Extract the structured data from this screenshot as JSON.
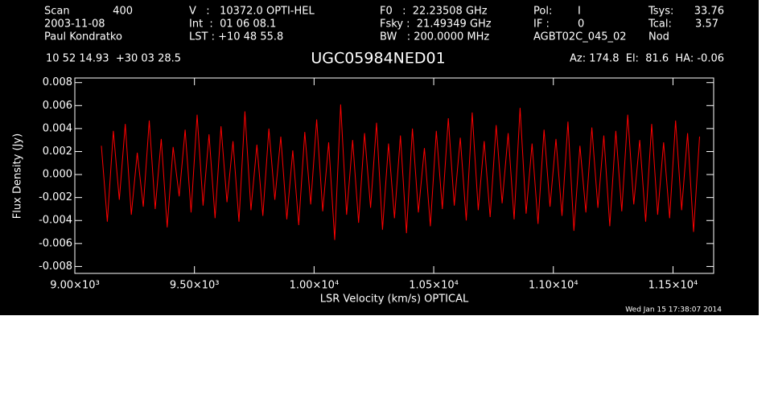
{
  "chart_data": {
    "type": "line",
    "title": "UGC05984NED01",
    "annotations": [
      "Scan",
      "400",
      "V   :   10372.0 OPTI-HEL",
      "F0   :  22.23508 GHz",
      "Pol:",
      "I",
      "Tsys:",
      "33.76",
      "2003-11-08",
      "Int  :  01 06 08.1",
      "Fsky :  21.49349 GHz",
      "IF :",
      "0",
      "Tcal:",
      "3.57",
      "Paul Kondratko",
      "LST : +10 48 55.8",
      "BW   : 200.0000 MHz",
      "AGBT02C_045_02",
      "Nod",
      "10 52 14.93  +30 03 28.5",
      "Az: 174.8  El:  81.6  HA: -0.06"
    ],
    "timestamp": "Wed Jan 15 17:38:07 2014",
    "xlabel": "LSR Velocity (km/s) OPTICAL",
    "ylabel": "Flux Density (Jy)",
    "xlim": [
      9000,
      11670
    ],
    "ylim": [
      -0.0086,
      0.0084
    ],
    "xticks": [
      {
        "value": 9000,
        "label": "9.00×10³"
      },
      {
        "value": 9500,
        "label": "9.50×10³"
      },
      {
        "value": 10000,
        "label": "1.00×10⁴"
      },
      {
        "value": 10500,
        "label": "1.05×10⁴"
      },
      {
        "value": 11000,
        "label": "1.10×10⁴"
      },
      {
        "value": 11500,
        "label": "1.15×10⁴"
      }
    ],
    "yticks": [
      -0.008,
      -0.006,
      -0.004,
      -0.002,
      {
        "value": 0,
        "label": "0.000"
      },
      0.002,
      0.004,
      0.006,
      0.008
    ],
    "grid": false,
    "series": [
      {
        "color": "#ff0000",
        "x": [
          9111,
          9136,
          9161,
          9186,
          9211,
          9236,
          9261,
          9286,
          9311,
          9336,
          9361,
          9386,
          9411,
          9436,
          9461,
          9486,
          9511,
          9536,
          9561,
          9586,
          9611,
          9636,
          9661,
          9686,
          9711,
          9736,
          9761,
          9786,
          9811,
          9836,
          9861,
          9886,
          9911,
          9936,
          9961,
          9986,
          10011,
          10036,
          10061,
          10086,
          10111,
          10136,
          10161,
          10186,
          10211,
          10236,
          10261,
          10286,
          10311,
          10336,
          10361,
          10386,
          10411,
          10436,
          10461,
          10486,
          10511,
          10536,
          10561,
          10586,
          10611,
          10636,
          10661,
          10686,
          10711,
          10736,
          10761,
          10786,
          10811,
          10836,
          10861,
          10886,
          10911,
          10936,
          10961,
          10986,
          11011,
          11036,
          11061,
          11086,
          11111,
          11136,
          11161,
          11186,
          11211,
          11236,
          11261,
          11286,
          11311,
          11336,
          11361,
          11386,
          11411,
          11436,
          11461,
          11486,
          11511,
          11536,
          11561,
          11586,
          11611
        ],
        "values": [
          0.0025,
          -0.0041,
          0.0038,
          -0.0022,
          0.0044,
          -0.0035,
          0.0019,
          -0.0028,
          0.0047,
          -0.003,
          0.0031,
          -0.0046,
          0.0024,
          -0.0019,
          0.0039,
          -0.0033,
          0.0052,
          -0.0027,
          0.0035,
          -0.0038,
          0.0042,
          -0.0024,
          0.0029,
          -0.0041,
          0.0055,
          -0.0031,
          0.0026,
          -0.0036,
          0.004,
          -0.0022,
          0.0033,
          -0.0039,
          0.0021,
          -0.0044,
          0.0037,
          -0.0026,
          0.0048,
          -0.0032,
          0.0028,
          -0.0057,
          0.0061,
          -0.0035,
          0.003,
          -0.0042,
          0.0036,
          -0.0029,
          0.0045,
          -0.0048,
          0.0027,
          -0.0038,
          0.0034,
          -0.0051,
          0.004,
          -0.0033,
          0.0023,
          -0.0045,
          0.0038,
          -0.003,
          0.0049,
          -0.0027,
          0.0032,
          -0.004,
          0.0054,
          -0.0031,
          0.0029,
          -0.0037,
          0.0043,
          -0.0025,
          0.0036,
          -0.0039,
          0.0058,
          -0.0034,
          0.0027,
          -0.0043,
          0.0039,
          -0.0028,
          0.0031,
          -0.0036,
          0.0046,
          -0.0049,
          0.0025,
          -0.0033,
          0.0041,
          -0.0029,
          0.0034,
          -0.0045,
          0.0038,
          -0.0032,
          0.0052,
          -0.0026,
          0.003,
          -0.0041,
          0.0044,
          -0.0035,
          0.0028,
          -0.0038,
          0.0047,
          -0.0031,
          0.0036,
          -0.005,
          0.0033
        ]
      }
    ]
  }
}
